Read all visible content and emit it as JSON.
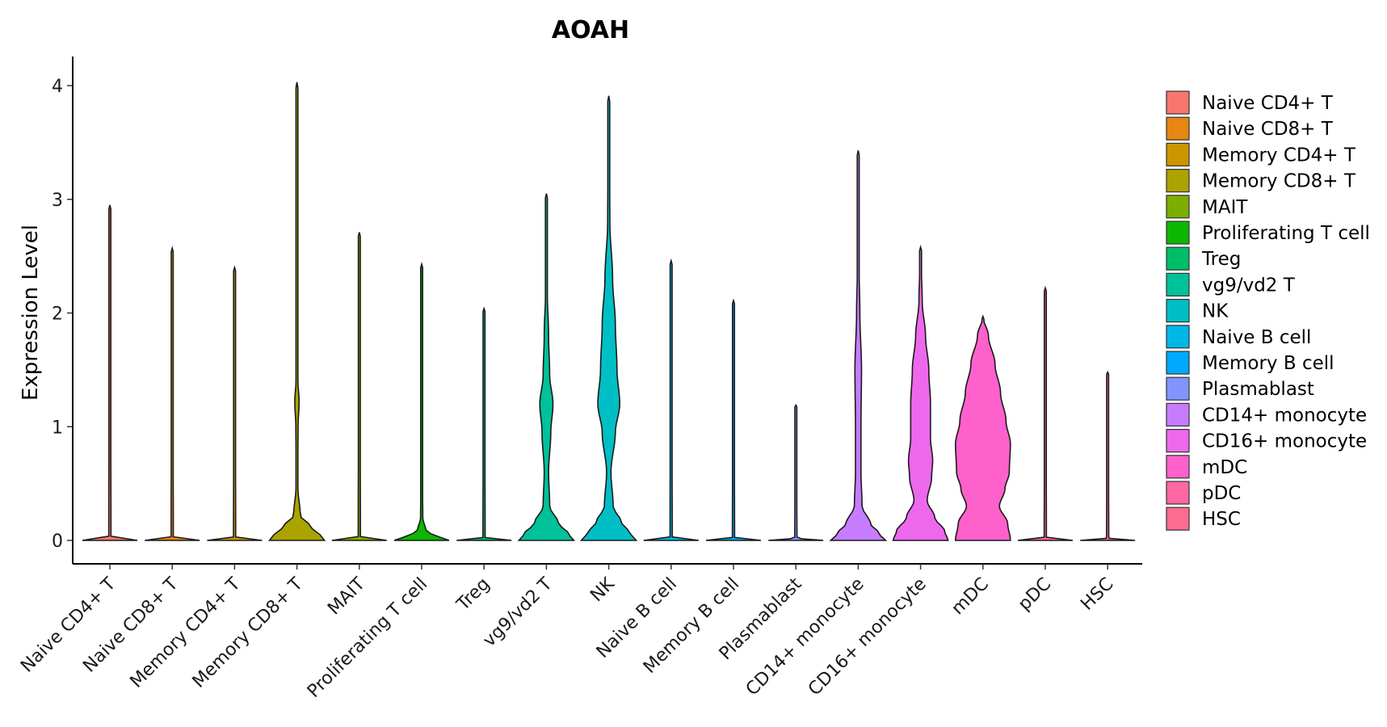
{
  "chart_data": {
    "type": "violin",
    "title": "AOAH",
    "xlabel": "",
    "ylabel": "Expression Level",
    "ylim": [
      -0.2,
      4.2
    ],
    "yticks": [
      0,
      1,
      2,
      3,
      4
    ],
    "grid": false,
    "legend_position": "right",
    "categories": [
      "Naive CD4+ T",
      "Naive CD8+ T",
      "Memory CD4+ T",
      "Memory CD8+ T",
      "MAIT",
      "Proliferating T cell",
      "Treg",
      "vg9/vd2 T",
      "NK",
      "Naive B cell",
      "Memory B cell",
      "Plasmablast",
      "CD14+ monocyte",
      "CD16+ monocyte",
      "mDC",
      "pDC",
      "HSC"
    ],
    "colors": [
      "#F8766D",
      "#E68613",
      "#CD9600",
      "#ABA300",
      "#7CAE00",
      "#0CB702",
      "#00BE67",
      "#00C19A",
      "#00BFC4",
      "#00B8E7",
      "#00A9FF",
      "#8494FF",
      "#C77CFF",
      "#ED68ED",
      "#FF61CC",
      "#FF68A1",
      "#FF6C91"
    ],
    "series": [
      {
        "name": "Naive CD4+ T",
        "max": 2.95,
        "profile": [
          [
            0,
            0.5
          ],
          [
            0.02,
            0.02
          ],
          [
            2.95,
            0.0
          ]
        ]
      },
      {
        "name": "Naive CD8+ T",
        "max": 2.57,
        "profile": [
          [
            0,
            0.5
          ],
          [
            0.02,
            0.02
          ],
          [
            2.57,
            0.0
          ]
        ]
      },
      {
        "name": "Memory CD4+ T",
        "max": 2.4,
        "profile": [
          [
            0,
            0.5
          ],
          [
            0.02,
            0.02
          ],
          [
            2.4,
            0.0
          ]
        ]
      },
      {
        "name": "Memory CD8+ T",
        "max": 4.03,
        "profile": [
          [
            0,
            0.5
          ],
          [
            0.05,
            0.42
          ],
          [
            0.12,
            0.25
          ],
          [
            0.22,
            0.06
          ],
          [
            0.5,
            0.01
          ],
          [
            1.0,
            0.02
          ],
          [
            1.22,
            0.04
          ],
          [
            1.45,
            0.01
          ],
          [
            2.0,
            0.005
          ],
          [
            4.03,
            0.0
          ]
        ]
      },
      {
        "name": "MAIT",
        "max": 2.71,
        "profile": [
          [
            0,
            0.5
          ],
          [
            0.02,
            0.02
          ],
          [
            2.71,
            0.0
          ]
        ]
      },
      {
        "name": "Proliferating T cell",
        "max": 2.43,
        "profile": [
          [
            0,
            0.5
          ],
          [
            0.03,
            0.32
          ],
          [
            0.08,
            0.08
          ],
          [
            0.2,
            0.02
          ],
          [
            0.5,
            0.015
          ],
          [
            1.0,
            0.005
          ],
          [
            2.43,
            0.0
          ]
        ]
      },
      {
        "name": "Treg",
        "max": 2.04,
        "profile": [
          [
            0,
            0.5
          ],
          [
            0.02,
            0.02
          ],
          [
            2.04,
            0.0
          ]
        ]
      },
      {
        "name": "vg9/vd2 T",
        "max": 3.05,
        "profile": [
          [
            0,
            0.5
          ],
          [
            0.06,
            0.4
          ],
          [
            0.15,
            0.22
          ],
          [
            0.3,
            0.06
          ],
          [
            0.6,
            0.04
          ],
          [
            0.95,
            0.08
          ],
          [
            1.2,
            0.12
          ],
          [
            1.45,
            0.06
          ],
          [
            1.8,
            0.04
          ],
          [
            2.2,
            0.015
          ],
          [
            3.05,
            0.0
          ]
        ]
      },
      {
        "name": "NK",
        "max": 3.91,
        "profile": [
          [
            0,
            0.5
          ],
          [
            0.06,
            0.4
          ],
          [
            0.15,
            0.24
          ],
          [
            0.3,
            0.08
          ],
          [
            0.6,
            0.04
          ],
          [
            0.95,
            0.12
          ],
          [
            1.2,
            0.2
          ],
          [
            1.5,
            0.15
          ],
          [
            1.9,
            0.12
          ],
          [
            2.3,
            0.07
          ],
          [
            2.8,
            0.02
          ],
          [
            3.91,
            0.0
          ]
        ]
      },
      {
        "name": "Naive B cell",
        "max": 2.46,
        "profile": [
          [
            0,
            0.5
          ],
          [
            0.02,
            0.02
          ],
          [
            2.46,
            0.0
          ]
        ]
      },
      {
        "name": "Memory B cell",
        "max": 2.11,
        "profile": [
          [
            0,
            0.5
          ],
          [
            0.02,
            0.02
          ],
          [
            2.11,
            0.0
          ]
        ]
      },
      {
        "name": "Plasmablast",
        "max": 1.19,
        "profile": [
          [
            0,
            0.5
          ],
          [
            0.02,
            0.02
          ],
          [
            1.19,
            0.0
          ]
        ]
      },
      {
        "name": "CD14+ monocyte",
        "max": 3.43,
        "profile": [
          [
            0,
            0.5
          ],
          [
            0.06,
            0.38
          ],
          [
            0.15,
            0.22
          ],
          [
            0.3,
            0.07
          ],
          [
            0.6,
            0.05
          ],
          [
            1.0,
            0.05
          ],
          [
            1.5,
            0.06
          ],
          [
            2.0,
            0.03
          ],
          [
            2.5,
            0.01
          ],
          [
            3.43,
            0.0
          ]
        ]
      },
      {
        "name": "CD16+ monocyte",
        "max": 2.58,
        "profile": [
          [
            0,
            0.5
          ],
          [
            0.08,
            0.44
          ],
          [
            0.2,
            0.26
          ],
          [
            0.35,
            0.12
          ],
          [
            0.55,
            0.2
          ],
          [
            0.7,
            0.22
          ],
          [
            0.9,
            0.18
          ],
          [
            1.2,
            0.18
          ],
          [
            1.5,
            0.15
          ],
          [
            1.8,
            0.09
          ],
          [
            2.1,
            0.03
          ],
          [
            2.58,
            0.0
          ]
        ]
      },
      {
        "name": "mDC",
        "max": 1.97,
        "profile": [
          [
            0,
            0.5
          ],
          [
            0.15,
            0.45
          ],
          [
            0.3,
            0.3
          ],
          [
            0.45,
            0.4
          ],
          [
            0.6,
            0.48
          ],
          [
            0.85,
            0.5
          ],
          [
            1.05,
            0.42
          ],
          [
            1.3,
            0.32
          ],
          [
            1.55,
            0.22
          ],
          [
            1.8,
            0.1
          ],
          [
            1.97,
            0.0
          ]
        ]
      },
      {
        "name": "pDC",
        "max": 2.22,
        "profile": [
          [
            0,
            0.5
          ],
          [
            0.02,
            0.02
          ],
          [
            2.22,
            0.0
          ]
        ]
      },
      {
        "name": "HSC",
        "max": 1.48,
        "profile": [
          [
            0,
            0.5
          ],
          [
            0.02,
            0.02
          ],
          [
            1.48,
            0.0
          ]
        ]
      }
    ]
  }
}
